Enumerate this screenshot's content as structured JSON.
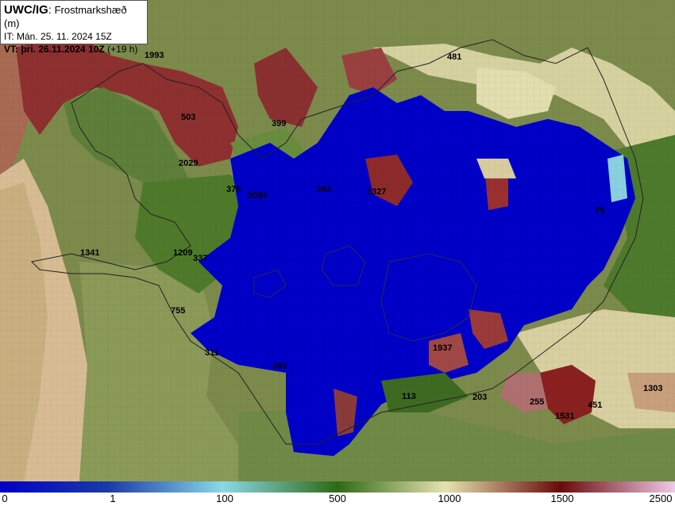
{
  "header": {
    "model": "UWC/IG",
    "parameter": "Frostmarkshæð (m)",
    "init_time": "IT: Mán. 25. 11. 2024 15Z",
    "valid_time_bold": "VT: þri. 26.11.2024 10Z",
    "lead_time": "(+19 h)"
  },
  "point_labels": [
    {
      "id": "1993",
      "text": "1993"
    },
    {
      "id": "481",
      "text": "481"
    },
    {
      "id": "503",
      "text": "503"
    },
    {
      "id": "399",
      "text": "399"
    },
    {
      "id": "2029",
      "text": "2029"
    },
    {
      "id": "375",
      "text": "375"
    },
    {
      "id": "2093",
      "text": "2093"
    },
    {
      "id": "263",
      "text": "263"
    },
    {
      "id": "1327",
      "text": "1327"
    },
    {
      "id": "79",
      "text": "79"
    },
    {
      "id": "1341",
      "text": "1341"
    },
    {
      "id": "1209",
      "text": "1209"
    },
    {
      "id": "337",
      "text": "337"
    },
    {
      "id": "755",
      "text": "755"
    },
    {
      "id": "1937",
      "text": "1937"
    },
    {
      "id": "311",
      "text": "311"
    },
    {
      "id": "393",
      "text": "393"
    },
    {
      "id": "113",
      "text": "113"
    },
    {
      "id": "203",
      "text": "203"
    },
    {
      "id": "255",
      "text": "255"
    },
    {
      "id": "1531",
      "text": "1531"
    },
    {
      "id": "451",
      "text": "451"
    },
    {
      "id": "1303",
      "text": "1303"
    }
  ],
  "legend": {
    "ticks": [
      {
        "value": "0",
        "text": "0"
      },
      {
        "value": "1",
        "text": "1"
      },
      {
        "value": "100",
        "text": "100"
      },
      {
        "value": "500",
        "text": "500"
      },
      {
        "value": "1000",
        "text": "1000"
      },
      {
        "value": "1500",
        "text": "1500"
      },
      {
        "value": "2500",
        "text": "2500"
      }
    ],
    "colors": [
      "#0000c8",
      "#1a3aa8",
      "#8ad8e8",
      "#2e6a14",
      "#e6e2b0",
      "#6a0a0a",
      "#f0c8e8"
    ]
  }
}
